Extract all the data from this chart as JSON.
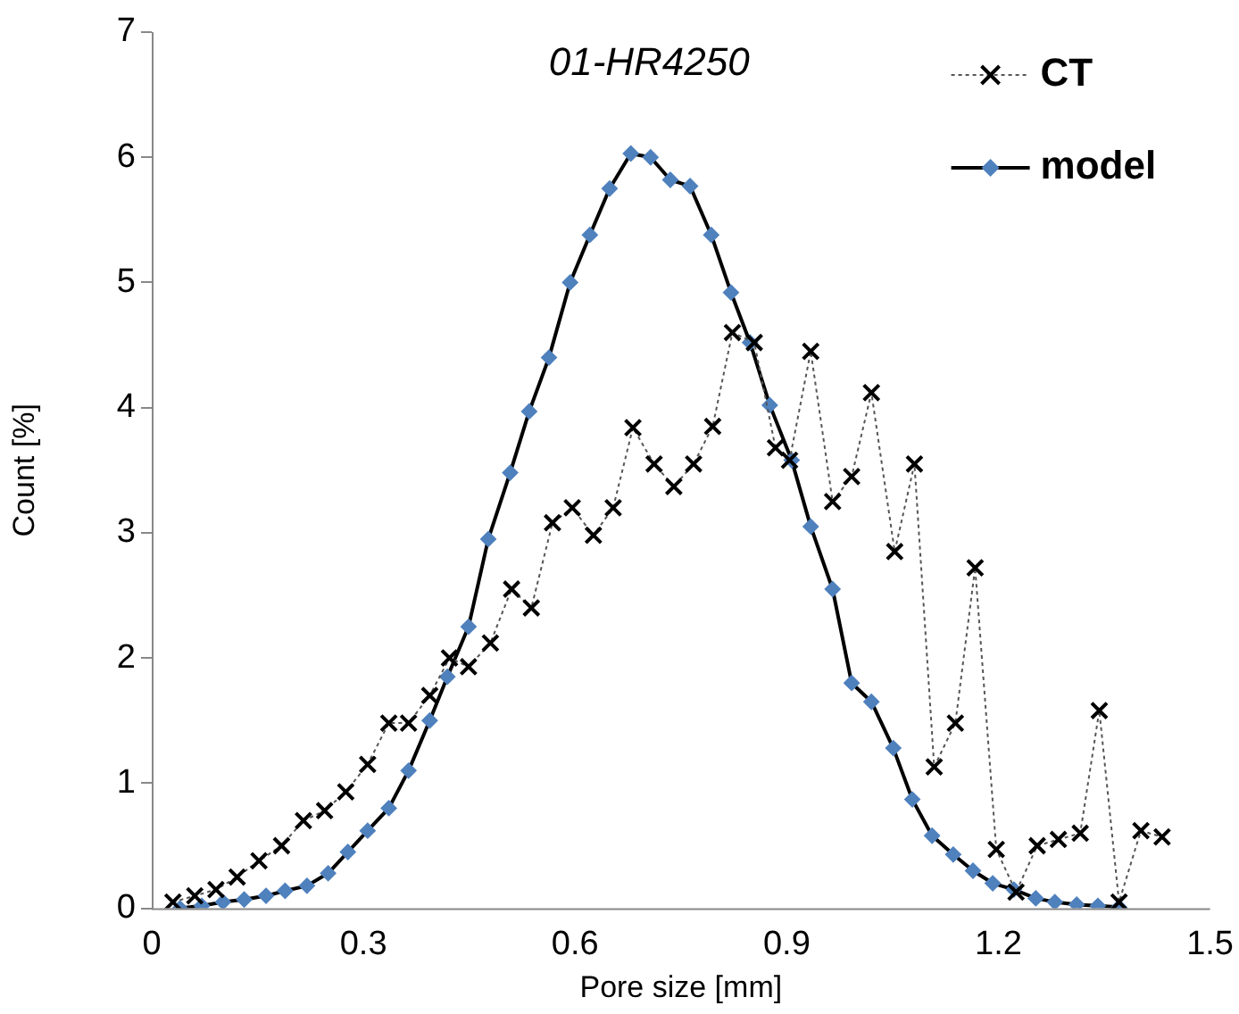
{
  "chart_data": {
    "type": "line",
    "title": "01-HR4250",
    "xlabel": "Pore size [mm]",
    "ylabel": "Count [%]",
    "xlim": [
      0,
      1.5
    ],
    "xticks": [
      0,
      0.3,
      0.6,
      0.9,
      1.2,
      1.5
    ],
    "ylim": [
      0,
      7
    ],
    "yticks": [
      0,
      1,
      2,
      3,
      4,
      5,
      6,
      7
    ],
    "grid": false,
    "legend": "top right",
    "series": [
      {
        "name": "CT",
        "color": "#000000",
        "marker": "cross",
        "line_style": "dotted",
        "x": [
          0.03,
          0.061,
          0.091,
          0.121,
          0.152,
          0.184,
          0.215,
          0.245,
          0.275,
          0.306,
          0.336,
          0.364,
          0.394,
          0.422,
          0.449,
          0.48,
          0.51,
          0.538,
          0.568,
          0.596,
          0.626,
          0.654,
          0.682,
          0.712,
          0.74,
          0.768,
          0.795,
          0.823,
          0.854,
          0.884,
          0.904,
          0.934,
          0.965,
          0.992,
          1.02,
          1.053,
          1.081,
          1.109,
          1.139,
          1.167,
          1.197,
          1.225,
          1.255,
          1.285,
          1.316,
          1.343,
          1.371,
          1.402,
          1.432
        ],
        "values": [
          0.05,
          0.1,
          0.15,
          0.25,
          0.38,
          0.5,
          0.7,
          0.78,
          0.93,
          1.15,
          1.48,
          1.48,
          1.7,
          2.0,
          1.93,
          2.12,
          2.55,
          2.4,
          3.08,
          3.2,
          2.98,
          3.2,
          3.84,
          3.55,
          3.37,
          3.55,
          3.85,
          4.6,
          4.52,
          3.68,
          3.58,
          4.45,
          3.25,
          3.45,
          4.12,
          2.85,
          3.55,
          1.13,
          1.48,
          2.72,
          0.47,
          0.13,
          0.5,
          0.55,
          0.6,
          1.58,
          0.05,
          0.62,
          0.57
        ]
      },
      {
        "name": "model",
        "color": "#4f81bd",
        "marker": "diamond",
        "line_style": "solid",
        "x": [
          0.04,
          0.071,
          0.101,
          0.131,
          0.162,
          0.189,
          0.22,
          0.25,
          0.278,
          0.306,
          0.336,
          0.364,
          0.394,
          0.419,
          0.449,
          0.477,
          0.508,
          0.535,
          0.563,
          0.593,
          0.621,
          0.649,
          0.679,
          0.707,
          0.735,
          0.763,
          0.793,
          0.821,
          0.848,
          0.876,
          0.907,
          0.934,
          0.965,
          0.992,
          1.02,
          1.051,
          1.078,
          1.106,
          1.136,
          1.164,
          1.192,
          1.222,
          1.253,
          1.28,
          1.311,
          1.341,
          1.371
        ],
        "values": [
          0.0,
          0.02,
          0.05,
          0.07,
          0.1,
          0.14,
          0.18,
          0.28,
          0.45,
          0.62,
          0.8,
          1.1,
          1.5,
          1.85,
          2.25,
          2.95,
          3.48,
          3.97,
          4.4,
          5.0,
          5.38,
          5.75,
          6.03,
          6.0,
          5.82,
          5.77,
          5.38,
          4.92,
          4.52,
          4.02,
          3.58,
          3.05,
          2.55,
          1.8,
          1.65,
          1.28,
          0.87,
          0.58,
          0.43,
          0.3,
          0.2,
          0.15,
          0.08,
          0.05,
          0.03,
          0.02,
          0.01
        ]
      }
    ]
  }
}
